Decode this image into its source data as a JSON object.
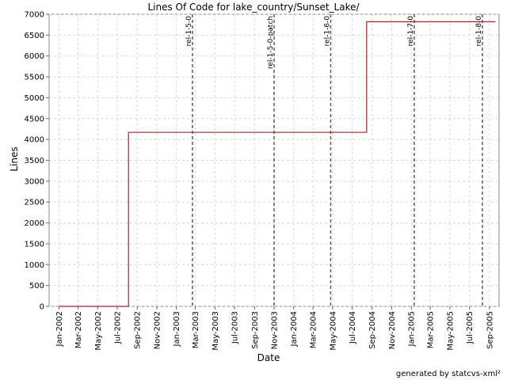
{
  "chart_data": {
    "type": "line",
    "title": "Lines Of Code for lake_country/Sunset_Lake/",
    "xlabel": "Date",
    "ylabel": "Lines",
    "ylim": [
      0,
      7000
    ],
    "y_ticks": [
      0,
      500,
      1000,
      1500,
      2000,
      2500,
      3000,
      3500,
      4000,
      4500,
      5000,
      5500,
      6000,
      6500,
      7000
    ],
    "x_range": [
      "2001-12-01",
      "2005-10-01"
    ],
    "x_tick_labels": [
      "Jan-2002",
      "Mar-2002",
      "May-2002",
      "Jul-2002",
      "Sep-2002",
      "Nov-2002",
      "Jan-2003",
      "Mar-2003",
      "May-2003",
      "Jul-2003",
      "Sep-2003",
      "Nov-2003",
      "Jan-2004",
      "Mar-2004",
      "May-2004",
      "Jul-2004",
      "Sep-2004",
      "Nov-2004",
      "Jan-2005",
      "Mar-2005",
      "May-2005",
      "Jul-2005",
      "Sep-2005"
    ],
    "grid": true,
    "series": [
      {
        "color": "#b22222",
        "step": true,
        "points": [
          {
            "x": "2002-01-01",
            "y": 0
          },
          {
            "x": "2002-08-05",
            "y": 4170
          },
          {
            "x": "2004-08-15",
            "y": 6820
          },
          {
            "x": "2005-09-20",
            "y": 6820
          }
        ]
      }
    ],
    "release_markers": [
      {
        "label": "rel-1-5-0",
        "x": "2003-02-20"
      },
      {
        "label": "rel-1-5-0-patch",
        "x": "2003-11-01"
      },
      {
        "label": "rel-1-6-0",
        "x": "2004-04-25"
      },
      {
        "label": "rel-1-7-0",
        "x": "2005-01-10"
      },
      {
        "label": "rel-1-8-0",
        "x": "2005-08-10"
      }
    ]
  },
  "footer": "generated by statcvs-xml²"
}
